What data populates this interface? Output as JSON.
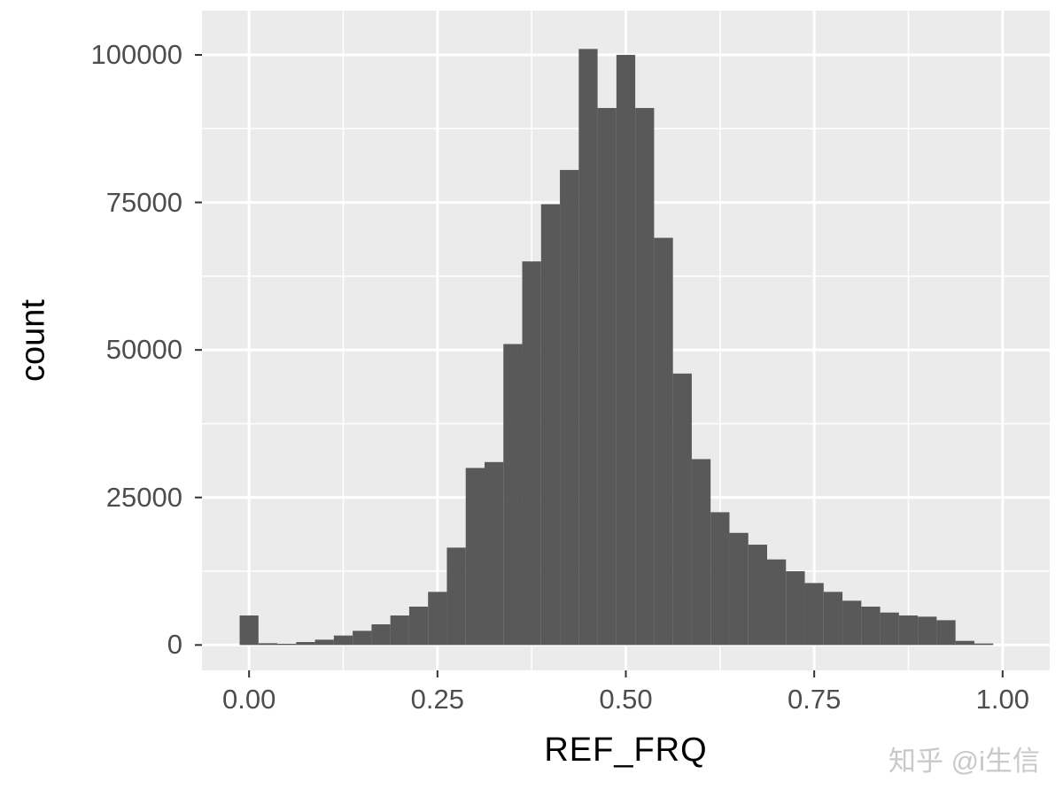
{
  "chart_data": {
    "type": "bar",
    "subtype": "histogram",
    "title": "",
    "xlabel": "REF_FRQ",
    "ylabel": "count",
    "binwidth": 0.025,
    "bin_centers": [
      0.0,
      0.025,
      0.05,
      0.075,
      0.1,
      0.125,
      0.15,
      0.175,
      0.2,
      0.225,
      0.25,
      0.275,
      0.3,
      0.325,
      0.35,
      0.375,
      0.4,
      0.425,
      0.45,
      0.475,
      0.5,
      0.525,
      0.55,
      0.575,
      0.6,
      0.625,
      0.65,
      0.675,
      0.7,
      0.725,
      0.75,
      0.775,
      0.8,
      0.825,
      0.85,
      0.875,
      0.9,
      0.925,
      0.95,
      0.975
    ],
    "counts": [
      5000,
      300,
      200,
      500,
      900,
      1600,
      2400,
      3500,
      5000,
      6500,
      9000,
      16500,
      30000,
      31000,
      51000,
      65000,
      74700,
      80500,
      101000,
      91000,
      100000,
      91000,
      69000,
      46000,
      31500,
      22500,
      19000,
      17000,
      14500,
      12500,
      10500,
      9000,
      7500,
      6500,
      5500,
      5000,
      4800,
      4200,
      700,
      250
    ],
    "x_ticks": [
      {
        "value": 0,
        "label": "0.00"
      },
      {
        "value": 0.25,
        "label": "0.25"
      },
      {
        "value": 0.5,
        "label": "0.50"
      },
      {
        "value": 0.75,
        "label": "0.75"
      },
      {
        "value": 1,
        "label": "1.00"
      }
    ],
    "y_ticks": [
      {
        "value": 0,
        "label": "0"
      },
      {
        "value": 25000,
        "label": "25000"
      },
      {
        "value": 50000,
        "label": "50000"
      },
      {
        "value": 75000,
        "label": "75000"
      },
      {
        "value": 100000,
        "label": "100000"
      }
    ],
    "x_minor": [
      0.125,
      0.375,
      0.625,
      0.875
    ],
    "y_minor": [
      12500,
      37500,
      62500,
      87500
    ],
    "xlim": [
      -0.0625,
      1.0625
    ],
    "ylim": [
      -4300,
      107500
    ],
    "grid": true,
    "legend": "none",
    "colors": {
      "bar": "#595959",
      "panel_bg": "#EBEBEB",
      "grid_major": "#FFFFFF",
      "grid_minor": "#FFFFFF",
      "tick_label": "#4D4D4D",
      "axis_title": "#000000",
      "tick_mark": "#333333"
    }
  },
  "watermark": {
    "text": "知乎 @i生信",
    "color": "#C9C9C9"
  }
}
